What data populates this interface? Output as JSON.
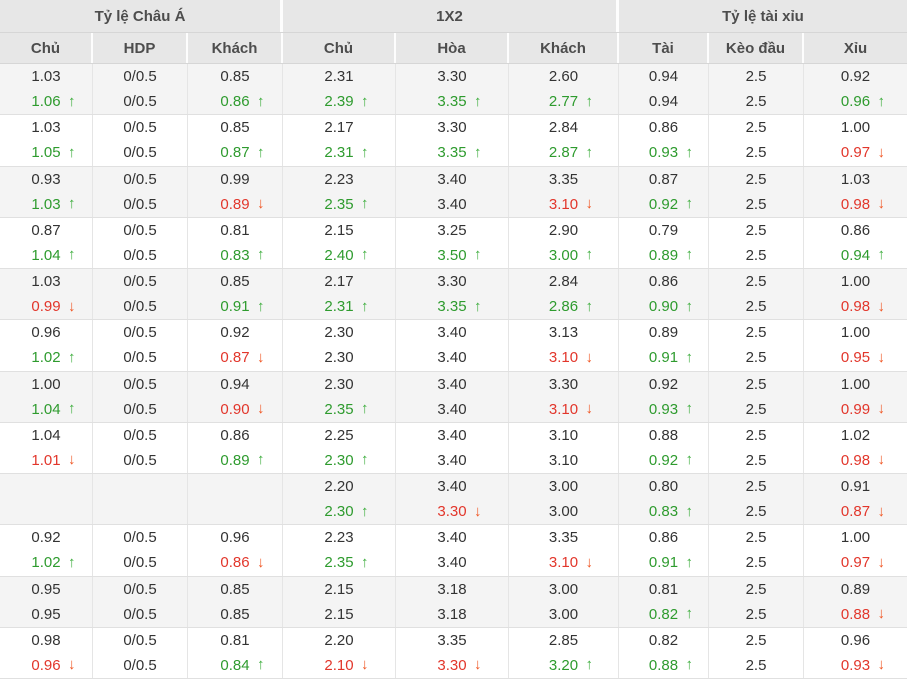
{
  "header": {
    "groups": [
      {
        "label": "Tỷ lệ Châu Á",
        "columns": [
          "Chủ",
          "HDP",
          "Khách"
        ]
      },
      {
        "label": "1X2",
        "columns": [
          "Chủ",
          "Hòa",
          "Khách"
        ]
      },
      {
        "label": "Tỷ lệ tài xỉu",
        "columns": [
          "Tài",
          "Kèo đầu",
          "Xỉu"
        ]
      }
    ]
  },
  "rows": [
    [
      {
        "open": "1.03",
        "current": "1.06",
        "trend": "up"
      },
      {
        "open": "0/0.5",
        "current": "0/0.5",
        "trend": ""
      },
      {
        "open": "0.85",
        "current": "0.86",
        "trend": "up"
      },
      {
        "open": "2.31",
        "current": "2.39",
        "trend": "up"
      },
      {
        "open": "3.30",
        "current": "3.35",
        "trend": "up"
      },
      {
        "open": "2.60",
        "current": "2.77",
        "trend": "up"
      },
      {
        "open": "0.94",
        "current": "0.94",
        "trend": ""
      },
      {
        "open": "2.5",
        "current": "2.5",
        "trend": ""
      },
      {
        "open": "0.92",
        "current": "0.96",
        "trend": "up"
      }
    ],
    [
      {
        "open": "1.03",
        "current": "1.05",
        "trend": "up"
      },
      {
        "open": "0/0.5",
        "current": "0/0.5",
        "trend": ""
      },
      {
        "open": "0.85",
        "current": "0.87",
        "trend": "up"
      },
      {
        "open": "2.17",
        "current": "2.31",
        "trend": "up"
      },
      {
        "open": "3.30",
        "current": "3.35",
        "trend": "up"
      },
      {
        "open": "2.84",
        "current": "2.87",
        "trend": "up"
      },
      {
        "open": "0.86",
        "current": "0.93",
        "trend": "up"
      },
      {
        "open": "2.5",
        "current": "2.5",
        "trend": ""
      },
      {
        "open": "1.00",
        "current": "0.97",
        "trend": "down"
      }
    ],
    [
      {
        "open": "0.93",
        "current": "1.03",
        "trend": "up"
      },
      {
        "open": "0/0.5",
        "current": "0/0.5",
        "trend": ""
      },
      {
        "open": "0.99",
        "current": "0.89",
        "trend": "down"
      },
      {
        "open": "2.23",
        "current": "2.35",
        "trend": "up"
      },
      {
        "open": "3.40",
        "current": "3.40",
        "trend": ""
      },
      {
        "open": "3.35",
        "current": "3.10",
        "trend": "down"
      },
      {
        "open": "0.87",
        "current": "0.92",
        "trend": "up"
      },
      {
        "open": "2.5",
        "current": "2.5",
        "trend": ""
      },
      {
        "open": "1.03",
        "current": "0.98",
        "trend": "down"
      }
    ],
    [
      {
        "open": "0.87",
        "current": "1.04",
        "trend": "up"
      },
      {
        "open": "0/0.5",
        "current": "0/0.5",
        "trend": ""
      },
      {
        "open": "0.81",
        "current": "0.83",
        "trend": "up"
      },
      {
        "open": "2.15",
        "current": "2.40",
        "trend": "up"
      },
      {
        "open": "3.25",
        "current": "3.50",
        "trend": "up"
      },
      {
        "open": "2.90",
        "current": "3.00",
        "trend": "up"
      },
      {
        "open": "0.79",
        "current": "0.89",
        "trend": "up"
      },
      {
        "open": "2.5",
        "current": "2.5",
        "trend": ""
      },
      {
        "open": "0.86",
        "current": "0.94",
        "trend": "up"
      }
    ],
    [
      {
        "open": "1.03",
        "current": "0.99",
        "trend": "down"
      },
      {
        "open": "0/0.5",
        "current": "0/0.5",
        "trend": ""
      },
      {
        "open": "0.85",
        "current": "0.91",
        "trend": "up"
      },
      {
        "open": "2.17",
        "current": "2.31",
        "trend": "up"
      },
      {
        "open": "3.30",
        "current": "3.35",
        "trend": "up"
      },
      {
        "open": "2.84",
        "current": "2.86",
        "trend": "up"
      },
      {
        "open": "0.86",
        "current": "0.90",
        "trend": "up"
      },
      {
        "open": "2.5",
        "current": "2.5",
        "trend": ""
      },
      {
        "open": "1.00",
        "current": "0.98",
        "trend": "down"
      }
    ],
    [
      {
        "open": "0.96",
        "current": "1.02",
        "trend": "up"
      },
      {
        "open": "0/0.5",
        "current": "0/0.5",
        "trend": ""
      },
      {
        "open": "0.92",
        "current": "0.87",
        "trend": "down"
      },
      {
        "open": "2.30",
        "current": "2.30",
        "trend": ""
      },
      {
        "open": "3.40",
        "current": "3.40",
        "trend": ""
      },
      {
        "open": "3.13",
        "current": "3.10",
        "trend": "down"
      },
      {
        "open": "0.89",
        "current": "0.91",
        "trend": "up"
      },
      {
        "open": "2.5",
        "current": "2.5",
        "trend": ""
      },
      {
        "open": "1.00",
        "current": "0.95",
        "trend": "down"
      }
    ],
    [
      {
        "open": "1.00",
        "current": "1.04",
        "trend": "up"
      },
      {
        "open": "0/0.5",
        "current": "0/0.5",
        "trend": ""
      },
      {
        "open": "0.94",
        "current": "0.90",
        "trend": "down"
      },
      {
        "open": "2.30",
        "current": "2.35",
        "trend": "up"
      },
      {
        "open": "3.40",
        "current": "3.40",
        "trend": ""
      },
      {
        "open": "3.30",
        "current": "3.10",
        "trend": "down"
      },
      {
        "open": "0.92",
        "current": "0.93",
        "trend": "up"
      },
      {
        "open": "2.5",
        "current": "2.5",
        "trend": ""
      },
      {
        "open": "1.00",
        "current": "0.99",
        "trend": "down"
      }
    ],
    [
      {
        "open": "1.04",
        "current": "1.01",
        "trend": "down"
      },
      {
        "open": "0/0.5",
        "current": "0/0.5",
        "trend": ""
      },
      {
        "open": "0.86",
        "current": "0.89",
        "trend": "up"
      },
      {
        "open": "2.25",
        "current": "2.30",
        "trend": "up"
      },
      {
        "open": "3.40",
        "current": "3.40",
        "trend": ""
      },
      {
        "open": "3.10",
        "current": "3.10",
        "trend": ""
      },
      {
        "open": "0.88",
        "current": "0.92",
        "trend": "up"
      },
      {
        "open": "2.5",
        "current": "2.5",
        "trend": ""
      },
      {
        "open": "1.02",
        "current": "0.98",
        "trend": "down"
      }
    ],
    [
      {
        "open": "",
        "current": "",
        "trend": ""
      },
      {
        "open": "",
        "current": "",
        "trend": ""
      },
      {
        "open": "",
        "current": "",
        "trend": ""
      },
      {
        "open": "2.20",
        "current": "2.30",
        "trend": "up"
      },
      {
        "open": "3.40",
        "current": "3.30",
        "trend": "down"
      },
      {
        "open": "3.00",
        "current": "3.00",
        "trend": ""
      },
      {
        "open": "0.80",
        "current": "0.83",
        "trend": "up"
      },
      {
        "open": "2.5",
        "current": "2.5",
        "trend": ""
      },
      {
        "open": "0.91",
        "current": "0.87",
        "trend": "down"
      }
    ],
    [
      {
        "open": "0.92",
        "current": "1.02",
        "trend": "up"
      },
      {
        "open": "0/0.5",
        "current": "0/0.5",
        "trend": ""
      },
      {
        "open": "0.96",
        "current": "0.86",
        "trend": "down"
      },
      {
        "open": "2.23",
        "current": "2.35",
        "trend": "up"
      },
      {
        "open": "3.40",
        "current": "3.40",
        "trend": ""
      },
      {
        "open": "3.35",
        "current": "3.10",
        "trend": "down"
      },
      {
        "open": "0.86",
        "current": "0.91",
        "trend": "up"
      },
      {
        "open": "2.5",
        "current": "2.5",
        "trend": ""
      },
      {
        "open": "1.00",
        "current": "0.97",
        "trend": "down"
      }
    ],
    [
      {
        "open": "0.95",
        "current": "0.95",
        "trend": ""
      },
      {
        "open": "0/0.5",
        "current": "0/0.5",
        "trend": ""
      },
      {
        "open": "0.85",
        "current": "0.85",
        "trend": ""
      },
      {
        "open": "2.15",
        "current": "2.15",
        "trend": ""
      },
      {
        "open": "3.18",
        "current": "3.18",
        "trend": ""
      },
      {
        "open": "3.00",
        "current": "3.00",
        "trend": ""
      },
      {
        "open": "0.81",
        "current": "0.82",
        "trend": "up"
      },
      {
        "open": "2.5",
        "current": "2.5",
        "trend": ""
      },
      {
        "open": "0.89",
        "current": "0.88",
        "trend": "down"
      }
    ],
    [
      {
        "open": "0.98",
        "current": "0.96",
        "trend": "down"
      },
      {
        "open": "0/0.5",
        "current": "0/0.5",
        "trend": ""
      },
      {
        "open": "0.81",
        "current": "0.84",
        "trend": "up"
      },
      {
        "open": "2.20",
        "current": "2.10",
        "trend": "down"
      },
      {
        "open": "3.35",
        "current": "3.30",
        "trend": "down"
      },
      {
        "open": "2.85",
        "current": "3.20",
        "trend": "up"
      },
      {
        "open": "0.82",
        "current": "0.88",
        "trend": "up"
      },
      {
        "open": "2.5",
        "current": "2.5",
        "trend": ""
      },
      {
        "open": "0.96",
        "current": "0.93",
        "trend": "down"
      }
    ]
  ],
  "icons": {
    "up_arrow": "↑",
    "down_arrow": "↓"
  },
  "colors": {
    "odds-up": "#2e9b2e",
    "odds-up-arrow": "#3fae3f",
    "odds-down": "#e2362b",
    "odds-down-arrow": "#f05623",
    "header-bg": "#e7e7e7",
    "row-alt-bg": "#f4f4f4"
  }
}
